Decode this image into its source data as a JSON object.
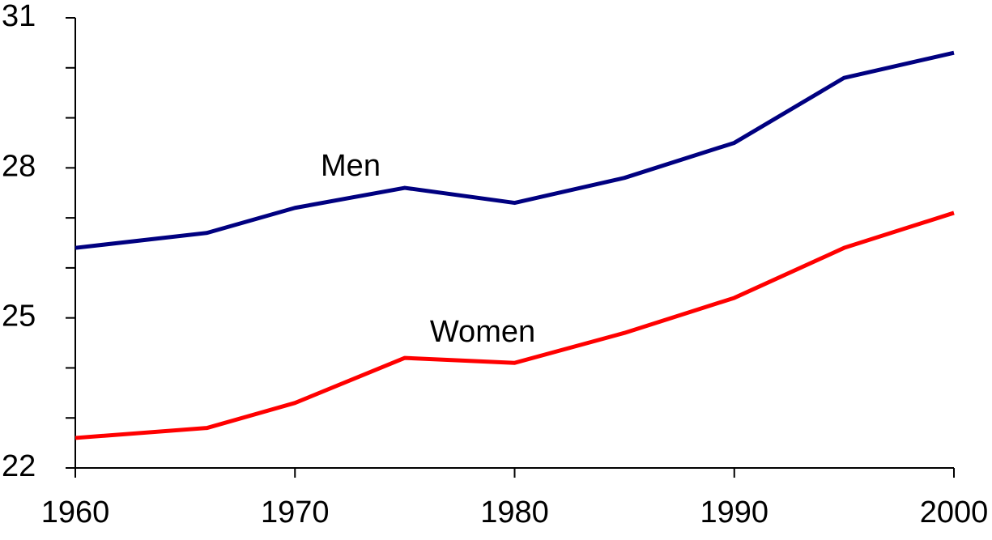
{
  "chart_data": {
    "type": "line",
    "x": [
      1960,
      1966,
      1970,
      1975,
      1980,
      1985,
      1990,
      1995,
      2000
    ],
    "series": [
      {
        "name": "Men",
        "color": "#000080",
        "values": [
          26.4,
          26.7,
          27.2,
          27.6,
          27.3,
          27.8,
          28.5,
          29.8,
          30.3
        ]
      },
      {
        "name": "Women",
        "color": "#ff0000",
        "values": [
          22.6,
          22.8,
          23.3,
          24.2,
          24.1,
          24.7,
          25.4,
          26.4,
          27.1
        ]
      }
    ],
    "xlim": [
      1960,
      2000
    ],
    "xticks": [
      1960,
      1970,
      1980,
      1990,
      2000
    ],
    "ylim": [
      22,
      31
    ],
    "yticks": [
      22,
      25,
      28,
      31
    ],
    "yminor_ticks": [
      23,
      24,
      26,
      27,
      29,
      30
    ],
    "grid": false
  }
}
